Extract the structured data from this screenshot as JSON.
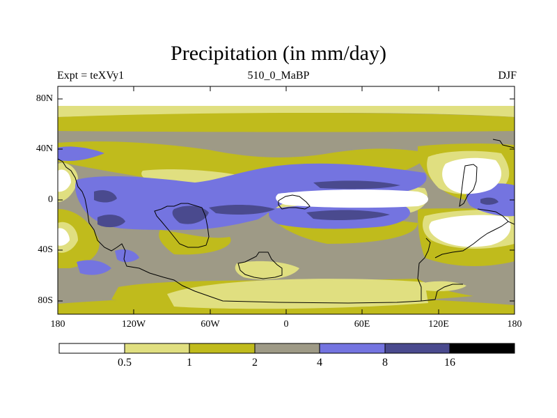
{
  "title": "Precipitation (in mm/day)",
  "subtitle_left": "Expt = teXVy1",
  "subtitle_center": "510_0_MaBP",
  "subtitle_right": "DJF",
  "lat_labels": [
    "80N",
    "40N",
    "0",
    "40S",
    "80S"
  ],
  "lon_labels": [
    "180",
    "120W",
    "60W",
    "0",
    "60E",
    "120E",
    "180"
  ],
  "colorbar": {
    "levels": [
      "0.5",
      "1",
      "2",
      "4",
      "8",
      "16"
    ],
    "colors": [
      "#ffffff",
      "#e0df80",
      "#c0bb1c",
      "#9e9a86",
      "#7474e0",
      "#4a4a8e",
      "#000000"
    ]
  }
}
